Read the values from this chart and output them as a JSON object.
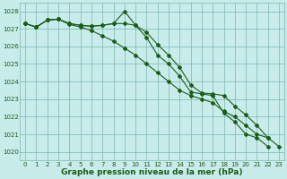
{
  "xlabel": "Graphe pression niveau de la mer (hPa)",
  "x": [
    0,
    1,
    2,
    3,
    4,
    5,
    6,
    7,
    8,
    9,
    10,
    11,
    12,
    13,
    14,
    15,
    16,
    17,
    18,
    19,
    20,
    21,
    22,
    23
  ],
  "line1_y": [
    1027.3,
    1027.1,
    1027.5,
    1027.55,
    1027.3,
    1027.2,
    1027.15,
    1027.2,
    1027.3,
    1028.0,
    1027.2,
    1026.5,
    1025.5,
    1025.0,
    1024.3,
    1023.4,
    1023.3,
    1023.2,
    1022.2,
    1021.7,
    1021.0,
    1020.8,
    1020.3,
    null
  ],
  "line2_y": [
    1027.3,
    1027.1,
    1027.5,
    1027.55,
    1027.25,
    1027.1,
    1026.9,
    1026.6,
    1026.3,
    1025.9,
    1025.5,
    1025.0,
    1024.5,
    1024.0,
    1023.5,
    1023.2,
    1023.0,
    1022.8,
    1022.3,
    1022.0,
    1021.5,
    1021.0,
    1020.8,
    null
  ],
  "line3_y": [
    1027.3,
    1027.1,
    1027.5,
    1027.55,
    1027.3,
    1027.2,
    1027.15,
    1027.2,
    1027.3,
    1027.3,
    1027.2,
    1026.8,
    1026.1,
    1025.5,
    1024.8,
    1023.8,
    1023.35,
    1023.3,
    1023.2,
    1022.6,
    1022.1,
    1021.5,
    1020.8,
    1020.3
  ],
  "ylim": [
    1019.5,
    1028.5
  ],
  "yticks": [
    1020,
    1021,
    1022,
    1023,
    1024,
    1025,
    1026,
    1027,
    1028
  ],
  "bg_color": "#c8ecea",
  "grid_color": "#7ab5b0",
  "line_color": "#1a5c1a",
  "title_color": "#1a5c1a",
  "label_color": "#1a5c1a",
  "title_fontsize": 6.5,
  "tick_fontsize": 5.0
}
